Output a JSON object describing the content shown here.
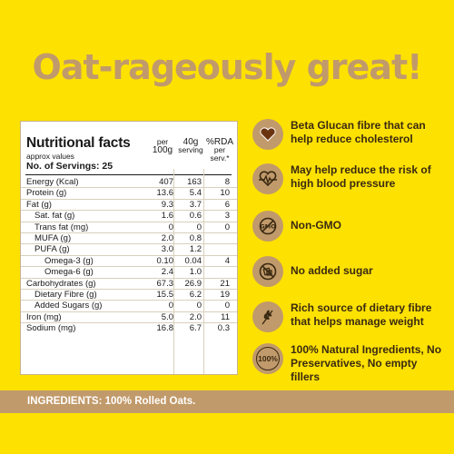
{
  "headline": "Oat-rageously great!",
  "nutrition": {
    "title": "Nutritional facts",
    "subtitle": "approx values",
    "servings": "No. of Servings: 25",
    "col1": {
      "top": "per",
      "bottom": "100g"
    },
    "col2": {
      "top": "40g",
      "bottom": "serving"
    },
    "col3": {
      "top": "%RDA",
      "mid": "per",
      "bottom": "serv.*"
    },
    "rows": [
      {
        "label": "Energy (Kcal)",
        "per100g": "407",
        "serving": "163",
        "rda": "8",
        "indent": 0
      },
      {
        "label": "Protein (g)",
        "per100g": "13.6",
        "serving": "5.4",
        "rda": "10",
        "indent": 0
      },
      {
        "label": "Fat (g)",
        "per100g": "9.3",
        "serving": "3.7",
        "rda": "6",
        "indent": 0
      },
      {
        "label": "Sat. fat (g)",
        "per100g": "1.6",
        "serving": "0.6",
        "rda": "3",
        "indent": 1
      },
      {
        "label": "Trans fat (mg)",
        "per100g": "0",
        "serving": "0",
        "rda": "0",
        "indent": 1
      },
      {
        "label": "MUFA (g)",
        "per100g": "2.0",
        "serving": "0.8",
        "rda": "",
        "indent": 1
      },
      {
        "label": "PUFA (g)",
        "per100g": "3.0",
        "serving": "1.2",
        "rda": "",
        "indent": 1
      },
      {
        "label": "Omega-3 (g)",
        "per100g": "0.10",
        "serving": "0.04",
        "rda": "4",
        "indent": 2
      },
      {
        "label": "Omega-6 (g)",
        "per100g": "2.4",
        "serving": "1.0",
        "rda": "",
        "indent": 2
      },
      {
        "label": "Carbohydrates (g)",
        "per100g": "67.3",
        "serving": "26.9",
        "rda": "21",
        "indent": 0
      },
      {
        "label": "Dietary Fibre (g)",
        "per100g": "15.5",
        "serving": "6.2",
        "rda": "19",
        "indent": 1
      },
      {
        "label": "Added Sugars (g)",
        "per100g": "0",
        "serving": "0",
        "rda": "0",
        "indent": 1
      },
      {
        "label": "Iron (mg)",
        "per100g": "5.0",
        "serving": "2.0",
        "rda": "11",
        "indent": 0
      },
      {
        "label": "Sodium (mg)",
        "per100g": "16.8",
        "serving": "6.7",
        "rda": "0.3",
        "indent": 0
      }
    ]
  },
  "features": [
    {
      "icon": "heart-icon",
      "text": "Beta Glucan fibre that can help reduce cholesterol"
    },
    {
      "icon": "heartbeat-icon",
      "text": "May help reduce the risk of high blood pressure"
    },
    {
      "icon": "non-gmo-icon",
      "text": "Non-GMO"
    },
    {
      "icon": "no-sugar-icon",
      "text": "No added sugar"
    },
    {
      "icon": "wheat-icon",
      "text": "Rich source of dietary fibre that helps manage weight"
    },
    {
      "icon": "hundred-percent-icon",
      "text": "100% Natural Ingredients, No Preservatives, No empty fillers",
      "badge": "100%"
    }
  ],
  "ingredients": "INGREDIENTS: 100% Rolled Oats.",
  "colors": {
    "background": "#fde100",
    "accent": "#c19a6b",
    "text": "#3a2a12"
  }
}
